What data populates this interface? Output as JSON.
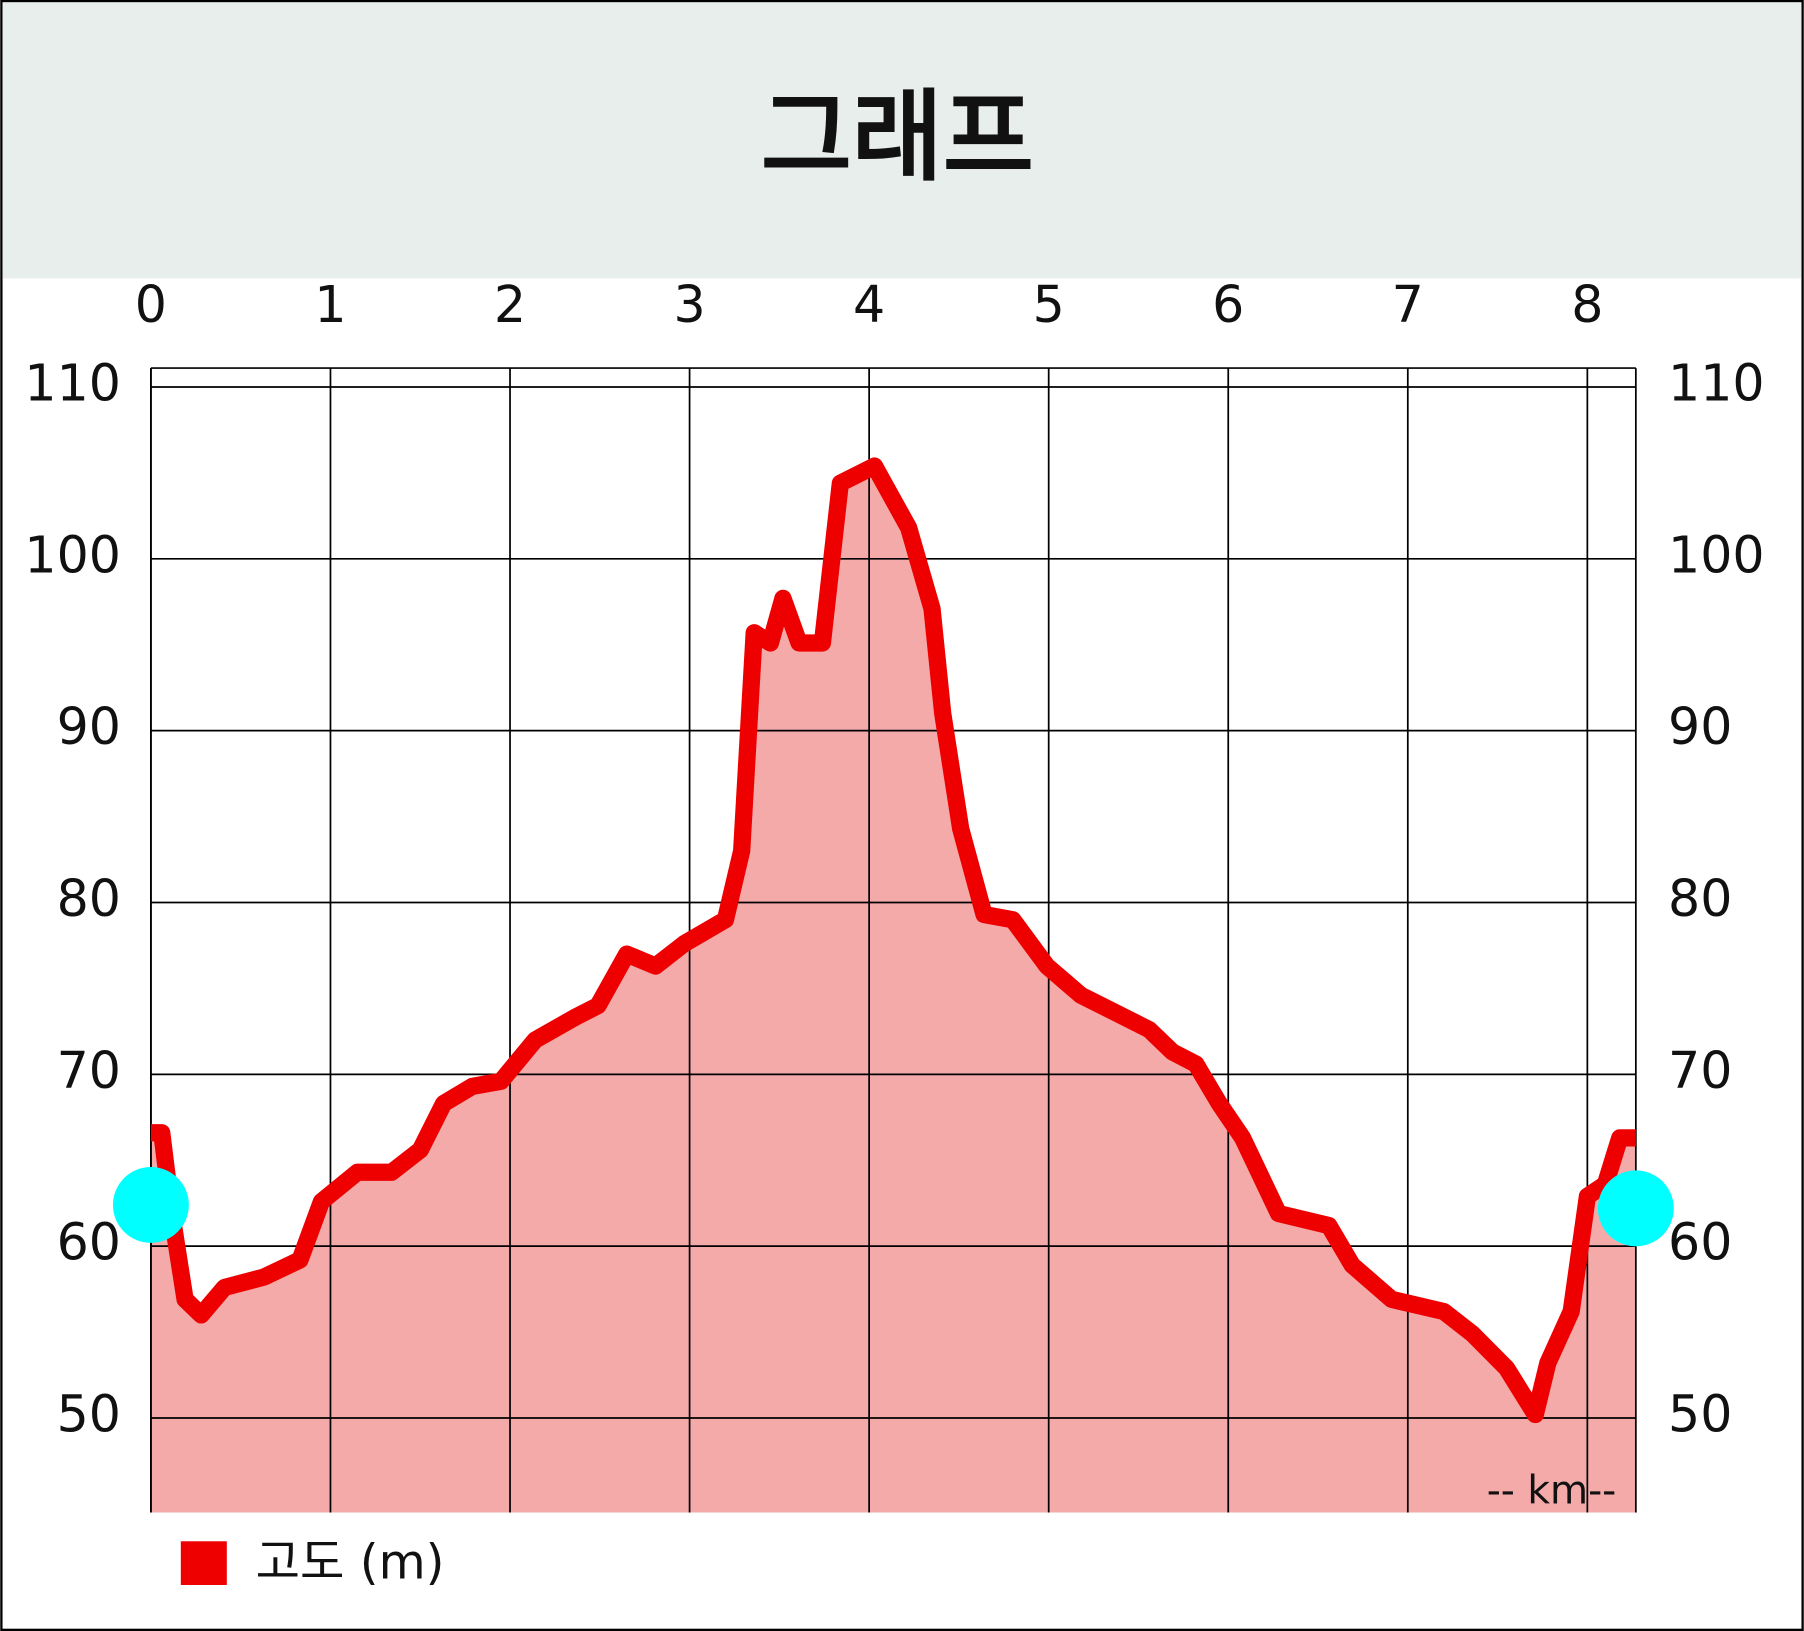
{
  "chart_data": {
    "type": "area",
    "title": "그래프",
    "x": [
      0,
      0.06,
      0.12,
      0.19,
      0.28,
      0.41,
      0.63,
      0.83,
      0.95,
      1.15,
      1.34,
      1.5,
      1.63,
      1.79,
      1.95,
      2.14,
      2.36,
      2.49,
      2.65,
      2.81,
      2.97,
      3.2,
      3.29,
      3.36,
      3.45,
      3.52,
      3.61,
      3.74,
      3.84,
      4.03,
      4.22,
      4.35,
      4.41,
      4.51,
      4.64,
      4.8,
      4.99,
      5.18,
      5.37,
      5.56,
      5.69,
      5.82,
      5.95,
      6.08,
      6.28,
      6.56,
      6.69,
      6.91,
      7.2,
      7.36,
      7.55,
      7.71,
      7.78,
      7.91,
      8.0,
      8.1,
      8.18,
      8.27
    ],
    "series": [
      {
        "name": "고도 (m)",
        "color": "#ee0000",
        "fill": "#f5aaaa",
        "values": [
          66.6,
          66.6,
          61.6,
          56.9,
          56.0,
          57.6,
          58.2,
          59.2,
          62.6,
          64.3,
          64.3,
          65.6,
          68.3,
          69.3,
          69.6,
          72.0,
          73.3,
          74.0,
          77.0,
          76.3,
          77.6,
          79.0,
          83.0,
          95.7,
          95.1,
          97.7,
          95.1,
          95.1,
          104.4,
          105.4,
          101.8,
          97.1,
          91.0,
          84.3,
          79.3,
          79.0,
          76.3,
          74.6,
          73.6,
          72.6,
          71.3,
          70.6,
          68.3,
          66.3,
          61.9,
          61.2,
          58.9,
          56.9,
          56.2,
          54.9,
          52.9,
          50.2,
          53.2,
          56.2,
          62.9,
          63.6,
          66.3,
          66.3
        ]
      }
    ],
    "markers": {
      "color": "#00ffff",
      "x": [
        0,
        8.27
      ],
      "values": [
        62.4,
        62.2
      ]
    },
    "xlim": [
      0,
      8.27
    ],
    "ylim": [
      44.5,
      111.1
    ],
    "xticks": [
      0,
      1,
      2,
      3,
      4,
      5,
      6,
      7,
      8
    ],
    "yticks": [
      50,
      60,
      70,
      80,
      90,
      100,
      110
    ],
    "x_unit_label": "-- km--",
    "grid": true
  }
}
